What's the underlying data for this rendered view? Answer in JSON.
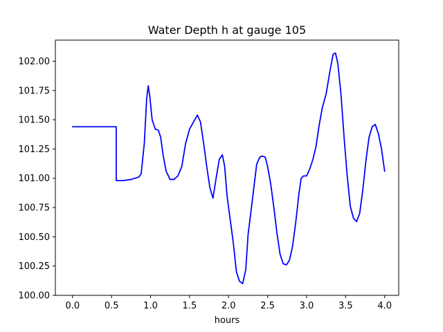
{
  "chart_data": {
    "type": "line",
    "title": "Water Depth h at gauge 105",
    "xlabel": "hours",
    "ylabel": "",
    "xlim": [
      -0.22,
      4.18
    ],
    "ylim": [
      100.0,
      102.18
    ],
    "xticks": [
      0.0,
      0.5,
      1.0,
      1.5,
      2.0,
      2.5,
      3.0,
      3.5,
      4.0
    ],
    "xtick_labels": [
      "0.0",
      "0.5",
      "1.0",
      "1.5",
      "2.0",
      "2.5",
      "3.0",
      "3.5",
      "4.0"
    ],
    "yticks": [
      100.0,
      100.25,
      100.5,
      100.75,
      101.0,
      101.25,
      101.5,
      101.75,
      102.0
    ],
    "ytick_labels": [
      "100.00",
      "100.25",
      "100.50",
      "100.75",
      "101.00",
      "101.25",
      "101.50",
      "101.75",
      "102.00"
    ],
    "grid": false,
    "legend": "none",
    "series": [
      {
        "color": "#0000ff",
        "x": [
          0.0,
          0.35,
          0.56,
          0.56,
          0.65,
          0.75,
          0.85,
          0.88,
          0.92,
          0.95,
          0.97,
          0.99,
          1.02,
          1.06,
          1.1,
          1.13,
          1.16,
          1.2,
          1.25,
          1.3,
          1.35,
          1.4,
          1.45,
          1.5,
          1.55,
          1.6,
          1.64,
          1.68,
          1.72,
          1.76,
          1.8,
          1.84,
          1.88,
          1.92,
          1.95,
          1.98,
          2.02,
          2.06,
          2.1,
          2.14,
          2.18,
          2.22,
          2.25,
          2.28,
          2.32,
          2.36,
          2.4,
          2.43,
          2.47,
          2.5,
          2.54,
          2.58,
          2.62,
          2.66,
          2.7,
          2.74,
          2.78,
          2.82,
          2.86,
          2.9,
          2.93,
          2.96,
          3.0,
          3.04,
          3.08,
          3.12,
          3.16,
          3.2,
          3.25,
          3.3,
          3.34,
          3.37,
          3.4,
          3.44,
          3.48,
          3.52,
          3.56,
          3.6,
          3.64,
          3.68,
          3.72,
          3.76,
          3.8,
          3.84,
          3.88,
          3.92,
          3.96,
          4.0
        ],
        "y": [
          101.44,
          101.44,
          101.44,
          100.98,
          100.98,
          100.99,
          101.01,
          101.04,
          101.3,
          101.68,
          101.79,
          101.7,
          101.5,
          101.42,
          101.41,
          101.35,
          101.2,
          101.06,
          100.99,
          100.99,
          101.02,
          101.1,
          101.3,
          101.42,
          101.48,
          101.54,
          101.48,
          101.3,
          101.1,
          100.92,
          100.83,
          101.0,
          101.16,
          101.2,
          101.1,
          100.85,
          100.65,
          100.45,
          100.2,
          100.12,
          100.1,
          100.22,
          100.52,
          100.68,
          100.9,
          101.12,
          101.18,
          101.19,
          101.18,
          101.1,
          100.95,
          100.75,
          100.53,
          100.35,
          100.27,
          100.26,
          100.3,
          100.42,
          100.62,
          100.86,
          101.0,
          101.02,
          101.02,
          101.08,
          101.16,
          101.27,
          101.45,
          101.6,
          101.72,
          101.92,
          102.06,
          102.07,
          101.98,
          101.72,
          101.35,
          101.02,
          100.76,
          100.66,
          100.63,
          100.7,
          100.9,
          101.15,
          101.35,
          101.44,
          101.46,
          101.38,
          101.25,
          101.06
        ]
      }
    ]
  }
}
